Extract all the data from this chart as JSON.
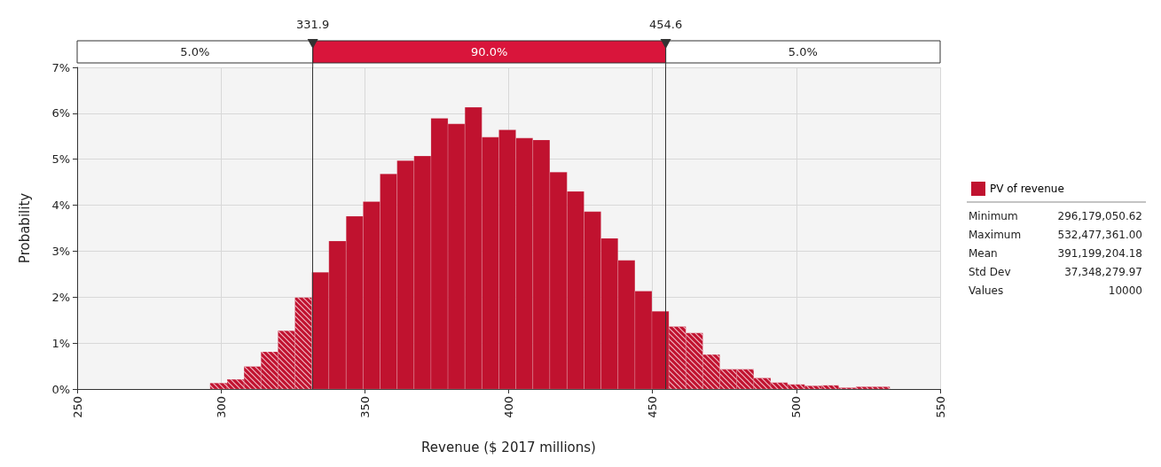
{
  "chart_data": {
    "type": "histogram",
    "xlabel": "Revenue ($ 2017 millions)",
    "ylabel": "Probability",
    "bins": [
      296.2,
      302.1,
      308.0,
      313.9,
      319.8,
      325.7,
      331.6,
      337.5,
      343.5,
      349.4,
      355.3,
      361.2,
      367.1,
      373.0,
      378.9,
      384.8,
      390.7,
      396.6,
      402.5,
      408.4,
      414.3,
      420.3,
      426.2,
      432.1,
      438.0,
      443.9,
      449.8,
      455.7,
      461.6,
      467.5,
      473.4,
      479.3,
      485.2,
      491.1,
      497.0,
      502.9,
      508.8,
      514.8,
      520.7,
      526.6,
      532.5
    ],
    "series": [
      {
        "name": "PV of revenue",
        "color": "#c0122f",
        "values": [
          0.13,
          0.21,
          0.49,
          0.81,
          1.27,
          1.99,
          2.54,
          3.22,
          3.76,
          4.08,
          4.68,
          4.97,
          5.07,
          5.89,
          5.77,
          6.13,
          5.48,
          5.64,
          5.46,
          5.42,
          4.72,
          4.3,
          3.86,
          3.28,
          2.8,
          2.13,
          1.69,
          1.36,
          1.22,
          0.75,
          0.43,
          0.43,
          0.24,
          0.14,
          0.1,
          0.07,
          0.08,
          0.03,
          0.05,
          0.05
        ]
      }
    ],
    "xlim": [
      250,
      550
    ],
    "xticks": [
      250,
      300,
      350,
      400,
      450,
      500,
      550
    ],
    "ylim": [
      0,
      7
    ],
    "yticks": [
      {
        "value": 0,
        "label": "0%"
      },
      {
        "value": 1,
        "label": "1%"
      },
      {
        "value": 2,
        "label": "2%"
      },
      {
        "value": 3,
        "label": "3%"
      },
      {
        "value": 4,
        "label": "4%"
      },
      {
        "value": 5,
        "label": "5%"
      },
      {
        "value": 6,
        "label": "6%"
      },
      {
        "value": 7,
        "label": "7%"
      }
    ],
    "ref_lines": [
      {
        "axis": "x",
        "value": 331.9,
        "label": "331.9"
      },
      {
        "axis": "x",
        "value": 454.6,
        "label": "454.6"
      }
    ],
    "annotations": [
      "5.0%",
      "90.0%",
      "5.0%",
      "Minimum",
      "296,179,050.62",
      "Maximum",
      "532,477,361.00",
      "Mean",
      "391,199,204.18",
      "Std Dev",
      "37,348,279.97",
      "Values",
      "10000"
    ],
    "grid": true,
    "legend": "right"
  }
}
